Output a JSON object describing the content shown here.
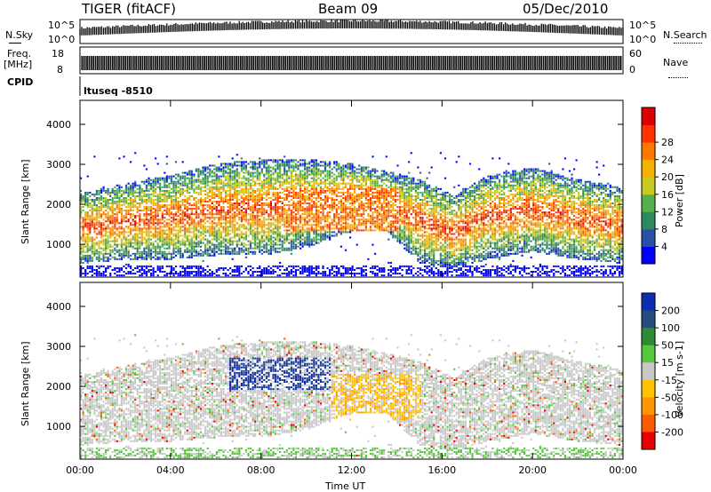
{
  "header": {
    "radar": "TIGER (fitACF)",
    "beam": "Beam 09",
    "date": "05/Dec/2010"
  },
  "strip_panels": {
    "nsky_label": "N.Sky",
    "nsky_ticks": [
      "10^5",
      "10^0"
    ],
    "nsearch_label": "N.Search",
    "nsearch_ticks": [
      "10^5",
      "10^0"
    ],
    "freq_label_1": "Freq.",
    "freq_label_2": "[MHz]",
    "freq_ticks": [
      "18",
      "8"
    ],
    "nave_label": "Nave",
    "nave_ticks": [
      "60",
      "0"
    ],
    "cpid_label": "CPID",
    "cpid_value": "ltuseq -8510"
  },
  "colors": {
    "power_scale": [
      "#0000ff",
      "#2a4fa8",
      "#2d8a5f",
      "#56b04a",
      "#c8c81e",
      "#f5b000",
      "#ff7800",
      "#ff3200",
      "#dd0000"
    ],
    "velocity_scale": [
      "#e60000",
      "#ff5a00",
      "#ff9600",
      "#ffc300",
      "#c8c8c8",
      "#56c83c",
      "#2d8a32",
      "#284b7d",
      "#0a2db4"
    ]
  },
  "chart_data": [
    {
      "type": "heatmap",
      "title": "Power",
      "ylabel": "Slant Range [km]",
      "xlabel": "",
      "y_ticks": [
        "1000",
        "2000",
        "3000",
        "4000"
      ],
      "x_range_hours": [
        0,
        24
      ],
      "ylim": [
        180,
        4600
      ],
      "colorbar_label": "Power [dB]",
      "colorbar_ticks": [
        "4",
        "8",
        "12",
        "16",
        "20",
        "24",
        "28"
      ]
    },
    {
      "type": "heatmap",
      "title": "Velocity",
      "ylabel": "Slant Range [km]",
      "xlabel": "Time UT",
      "y_ticks": [
        "1000",
        "2000",
        "3000",
        "4000"
      ],
      "x_ticks": [
        "00:00",
        "04:00",
        "08:00",
        "12:00",
        "16:00",
        "20:00",
        "00:00"
      ],
      "x_range_hours": [
        0,
        24
      ],
      "ylim": [
        180,
        4600
      ],
      "colorbar_label": "Velocity [m s-1]",
      "colorbar_ticks": [
        "200",
        "100",
        "50",
        "15",
        "-15",
        "-50",
        "-100",
        "-200"
      ]
    }
  ]
}
